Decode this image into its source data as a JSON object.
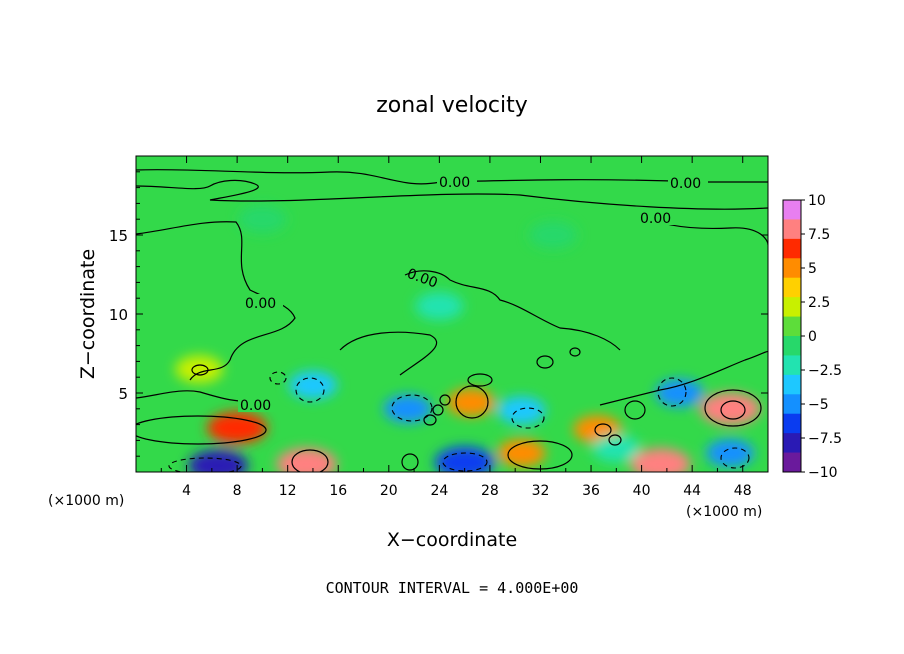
{
  "chart_data": {
    "type": "heatmap",
    "title": "zonal velocity",
    "xlabel": "X−coordinate",
    "ylabel": "Z−coordinate",
    "x_unit_left": "(×1000 m)",
    "x_unit_right": "(×1000 m)",
    "x_ticks": [
      "4",
      "8",
      "12",
      "16",
      "20",
      "24",
      "28",
      "32",
      "36",
      "40",
      "44",
      "48"
    ],
    "x_tick_values": [
      4,
      8,
      12,
      16,
      20,
      24,
      28,
      32,
      36,
      40,
      44,
      48
    ],
    "y_ticks": [
      "5",
      "10",
      "15"
    ],
    "y_tick_values": [
      5,
      10,
      15
    ],
    "xlim": [
      0,
      50
    ],
    "ylim": [
      0,
      20
    ],
    "colorbar_ticks": [
      "10",
      "7.5",
      "5",
      "2.5",
      "0",
      "−2.5",
      "−5",
      "−7.5",
      "−10"
    ],
    "colorbar_values": [
      10,
      7.5,
      5,
      2.5,
      0,
      -2.5,
      -5,
      -7.5,
      -10
    ],
    "colorbar_colors": [
      "#e87ff0",
      "#ff8080",
      "#ff2a00",
      "#ff8c00",
      "#ffd000",
      "#c8f000",
      "#5ddd3a",
      "#27d86a",
      "#22e3b0",
      "#1ec8ff",
      "#1490ff",
      "#0a3cf0",
      "#2a1ab4",
      "#6a1a9c"
    ],
    "contour_labels": [
      "0.00",
      "0.00",
      "0.00",
      "0.00",
      "0.00",
      "0.00"
    ],
    "contour_interval_text": "CONTOUR INTERVAL = 4.000E+00",
    "features": [
      {
        "x": 6.5,
        "z": 0.4,
        "value": -9
      },
      {
        "x": 8,
        "z": 2.8,
        "value": 7
      },
      {
        "x": 13.5,
        "z": 0.5,
        "value": 8
      },
      {
        "x": 14,
        "z": 5.5,
        "value": -4
      },
      {
        "x": 21.5,
        "z": 4,
        "value": -5
      },
      {
        "x": 26,
        "z": 0.6,
        "value": -7
      },
      {
        "x": 26.5,
        "z": 4.4,
        "value": 6
      },
      {
        "x": 30.5,
        "z": 1.2,
        "value": 5
      },
      {
        "x": 30.5,
        "z": 3.9,
        "value": -4
      },
      {
        "x": 36.5,
        "z": 2.7,
        "value": 5
      },
      {
        "x": 41.5,
        "z": 0.5,
        "value": 8
      },
      {
        "x": 43,
        "z": 5,
        "value": -5
      },
      {
        "x": 47,
        "z": 4,
        "value": 8
      },
      {
        "x": 47,
        "z": 1.2,
        "value": -6
      },
      {
        "x": 5,
        "z": 6.5,
        "value": 3
      },
      {
        "x": 38,
        "z": 1.5,
        "value": -3
      },
      {
        "x": 24,
        "z": 10.5,
        "value": -2
      },
      {
        "x": 10,
        "z": 16,
        "value": -1
      },
      {
        "x": 33,
        "z": 15,
        "value": -1
      }
    ]
  }
}
